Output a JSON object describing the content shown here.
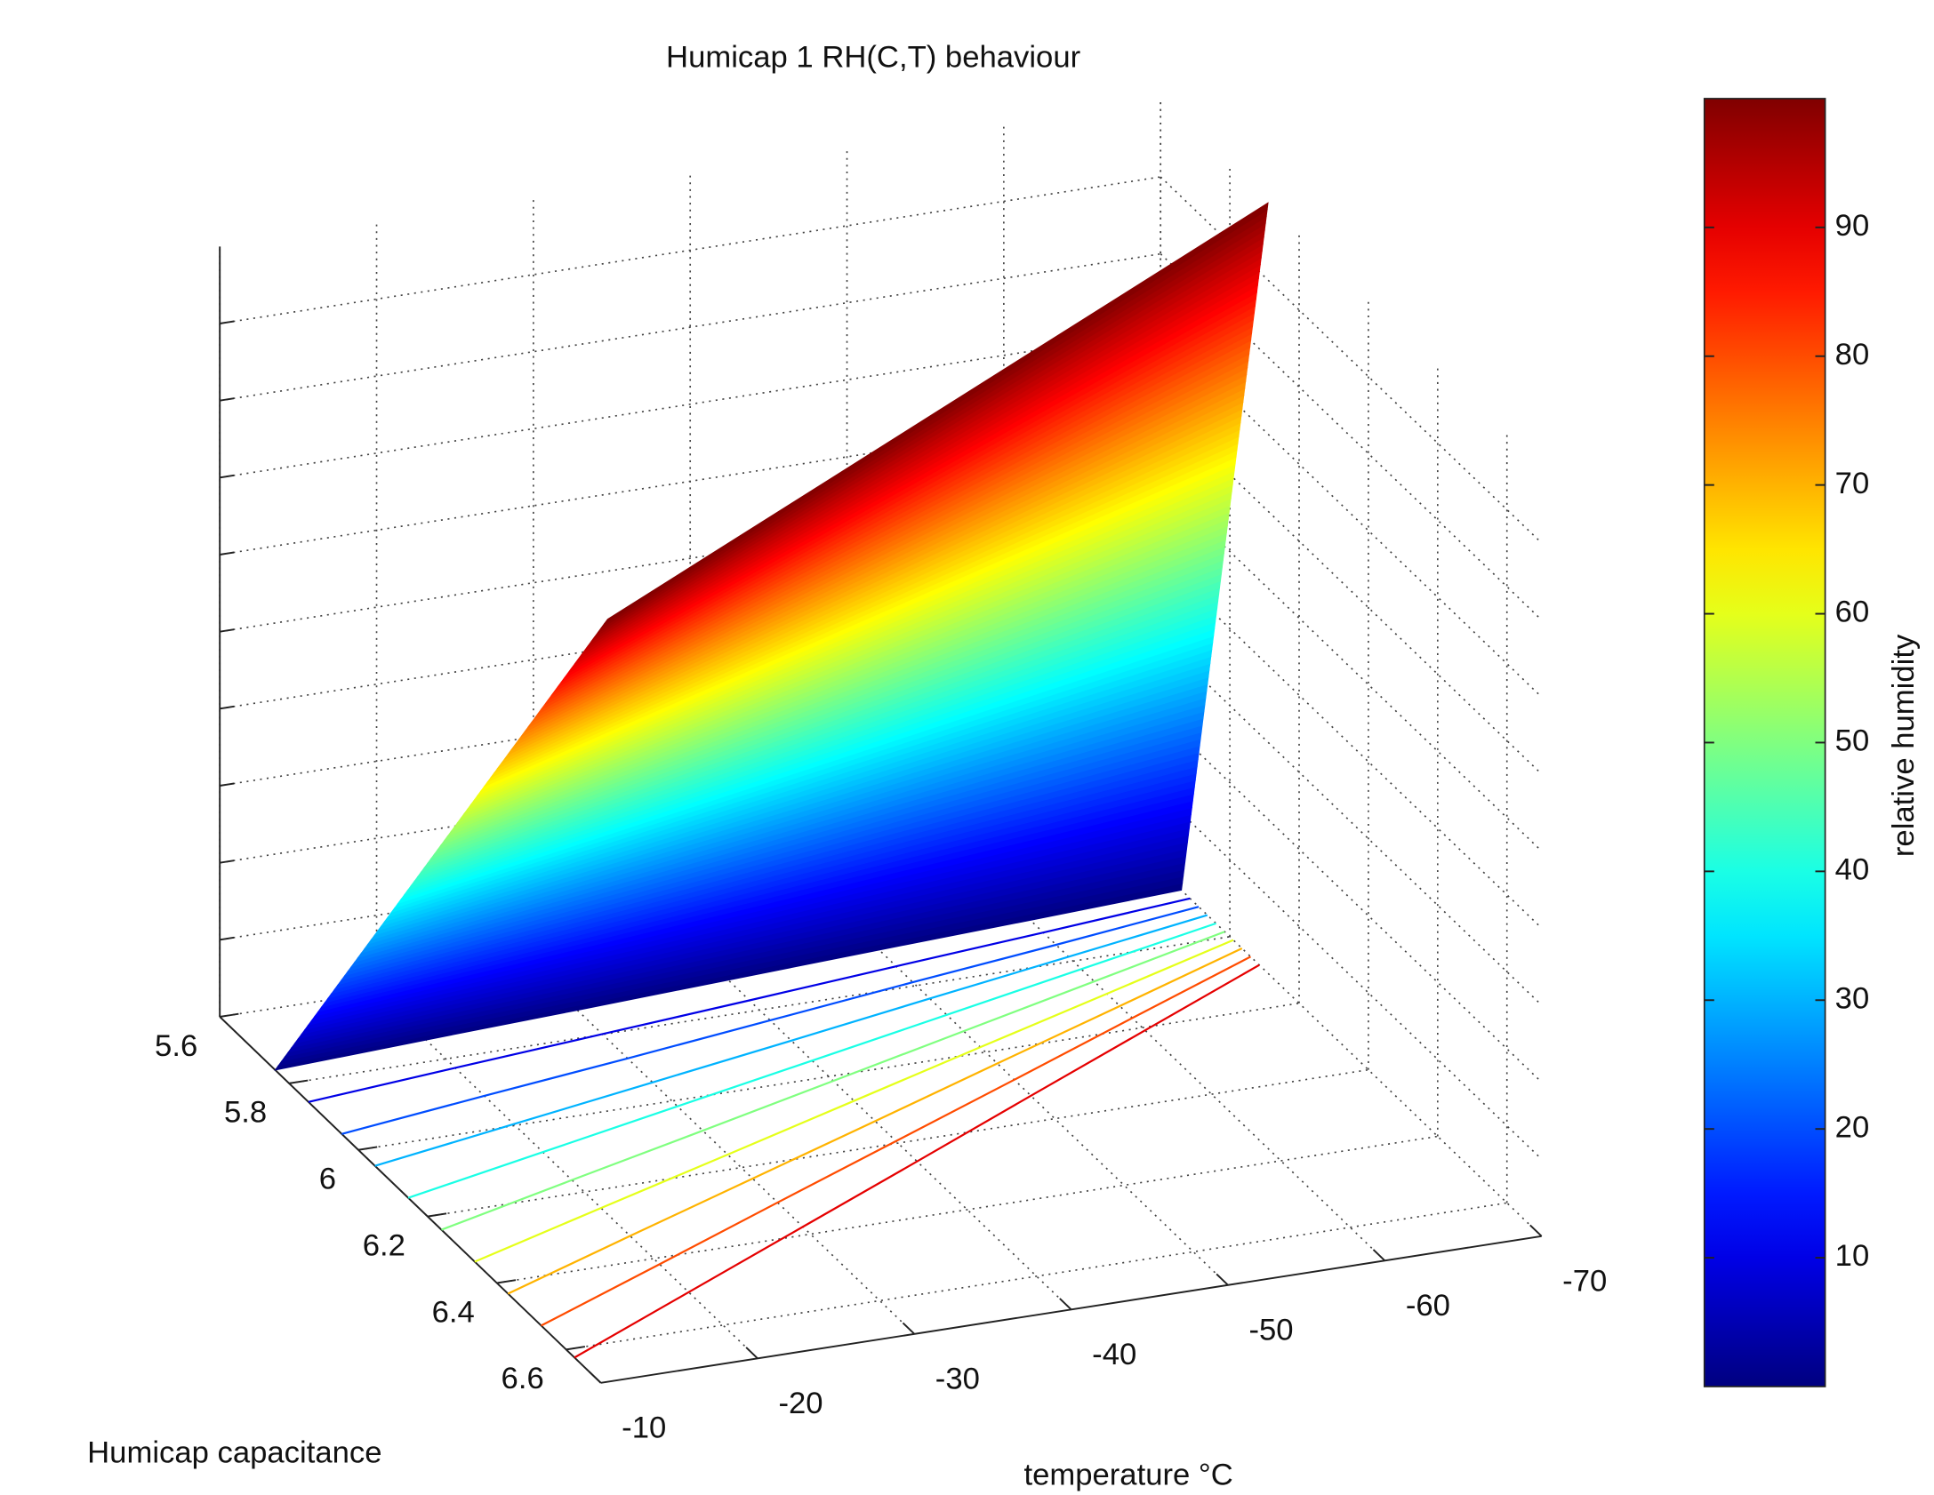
{
  "chart_data": {
    "type": "surface3d",
    "title": "Humicap 1 RH(C,T) behaviour",
    "xlabel": "temperature °C",
    "ylabel": "Humicap capacitance",
    "colorbar_label": "relative humidity",
    "x": [
      -10,
      -20,
      -30,
      -40,
      -50,
      -60,
      -70
    ],
    "rh_levels": [
      0,
      10,
      20,
      30,
      40,
      50,
      60,
      70,
      80,
      90,
      100
    ],
    "capacitance": [
      [
        5.76,
        5.856,
        5.952,
        6.048,
        6.144,
        6.24,
        6.336,
        6.432,
        6.528,
        6.624,
        6.72
      ],
      [
        5.743,
        5.827,
        5.911,
        5.996,
        6.08,
        6.164,
        6.248,
        6.332,
        6.417,
        6.501,
        6.585
      ],
      [
        5.727,
        5.799,
        5.872,
        5.944,
        6.016,
        6.089,
        6.161,
        6.233,
        6.305,
        6.378,
        6.45
      ],
      [
        5.71,
        5.771,
        5.831,
        5.892,
        5.952,
        6.013,
        6.073,
        6.134,
        6.194,
        6.255,
        6.315
      ],
      [
        5.693,
        5.742,
        5.79,
        5.839,
        5.888,
        5.937,
        5.985,
        6.034,
        6.083,
        6.131,
        6.18
      ],
      [
        5.677,
        5.714,
        5.751,
        5.787,
        5.824,
        5.861,
        5.898,
        5.935,
        5.971,
        6.008,
        6.045
      ],
      [
        5.66,
        5.685,
        5.71,
        5.735,
        5.76,
        5.785,
        5.81,
        5.835,
        5.86,
        5.885,
        5.91
      ]
    ],
    "contour_levels": [
      10,
      20,
      30,
      40,
      50,
      60,
      70,
      80,
      90
    ],
    "xlim": [
      -10,
      -70
    ],
    "xticks": [
      -10,
      -20,
      -30,
      -40,
      -50,
      -60,
      -70
    ],
    "ylim": [
      5.6,
      6.7
    ],
    "yticks": [
      5.6,
      5.8,
      6,
      6.2,
      6.4,
      6.6
    ],
    "zlim": [
      0,
      100
    ],
    "zticks": [
      10,
      20,
      30,
      40,
      50,
      60,
      70,
      80,
      90
    ],
    "clim": [
      0,
      100
    ],
    "cticks": [
      10,
      20,
      30,
      40,
      50,
      60,
      70,
      80,
      90
    ],
    "colormap": "jet",
    "grid": true
  }
}
